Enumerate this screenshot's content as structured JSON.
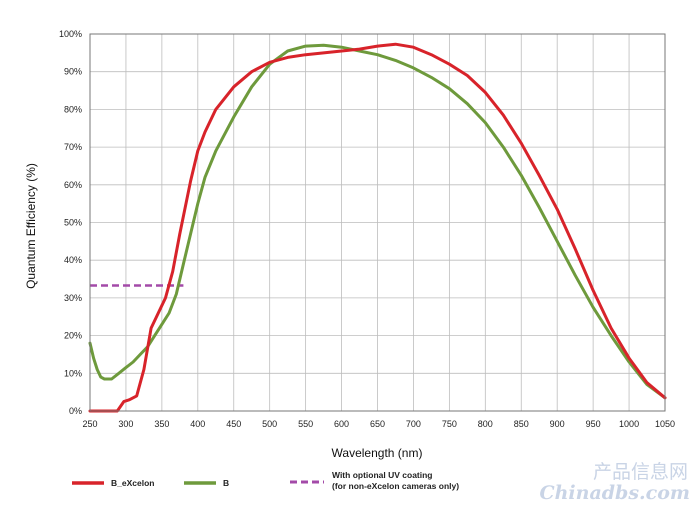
{
  "chart_data": {
    "type": "line",
    "xlabel": "Wavelength (nm)",
    "ylabel": "Quantum Efficiency (%)",
    "xlim": [
      250,
      1050
    ],
    "ylim": [
      0,
      100
    ],
    "x_ticks": [
      "250",
      "300",
      "350",
      "400",
      "450",
      "500",
      "550",
      "600",
      "650",
      "700",
      "750",
      "800",
      "850",
      "900",
      "950",
      "1000",
      "1050"
    ],
    "y_ticks": [
      "0%",
      "10%",
      "20%",
      "30%",
      "40%",
      "50%",
      "60%",
      "70%",
      "80%",
      "90%",
      "100%"
    ],
    "grid": true,
    "legend_position": "bottom",
    "series": [
      {
        "name": "B_eXcelon",
        "color": "#d8232a",
        "style": "solid",
        "points": [
          [
            250,
            0
          ],
          [
            270,
            0
          ],
          [
            288,
            0
          ],
          [
            297,
            2.5
          ],
          [
            305,
            3
          ],
          [
            315,
            4
          ],
          [
            325,
            11
          ],
          [
            335,
            22
          ],
          [
            345,
            26
          ],
          [
            355,
            30
          ],
          [
            365,
            37
          ],
          [
            375,
            47
          ],
          [
            390,
            61
          ],
          [
            400,
            69
          ],
          [
            410,
            74
          ],
          [
            425,
            80
          ],
          [
            450,
            86
          ],
          [
            475,
            90
          ],
          [
            500,
            92.5
          ],
          [
            525,
            93.8
          ],
          [
            550,
            94.5
          ],
          [
            575,
            95
          ],
          [
            600,
            95.5
          ],
          [
            625,
            96
          ],
          [
            650,
            96.8
          ],
          [
            675,
            97.3
          ],
          [
            700,
            96.5
          ],
          [
            725,
            94.5
          ],
          [
            750,
            92
          ],
          [
            775,
            89
          ],
          [
            800,
            84.5
          ],
          [
            825,
            78.5
          ],
          [
            850,
            71
          ],
          [
            875,
            62.5
          ],
          [
            900,
            53.5
          ],
          [
            925,
            43
          ],
          [
            950,
            32
          ],
          [
            975,
            22
          ],
          [
            1000,
            14
          ],
          [
            1025,
            7.5
          ],
          [
            1050,
            3.5
          ]
        ]
      },
      {
        "name": "B",
        "color": "#6e9a3c",
        "style": "solid",
        "points": [
          [
            250,
            18
          ],
          [
            255,
            14
          ],
          [
            260,
            11
          ],
          [
            265,
            9
          ],
          [
            270,
            8.5
          ],
          [
            280,
            8.5
          ],
          [
            290,
            10
          ],
          [
            300,
            11.5
          ],
          [
            310,
            13
          ],
          [
            320,
            15
          ],
          [
            330,
            17
          ],
          [
            340,
            20
          ],
          [
            350,
            23
          ],
          [
            360,
            26
          ],
          [
            370,
            31
          ],
          [
            380,
            39
          ],
          [
            390,
            47
          ],
          [
            400,
            55
          ],
          [
            410,
            62
          ],
          [
            425,
            69
          ],
          [
            450,
            78
          ],
          [
            475,
            86
          ],
          [
            500,
            92
          ],
          [
            525,
            95.5
          ],
          [
            550,
            96.8
          ],
          [
            575,
            97
          ],
          [
            600,
            96.5
          ],
          [
            625,
            95.5
          ],
          [
            650,
            94.5
          ],
          [
            675,
            93
          ],
          [
            700,
            91
          ],
          [
            725,
            88.5
          ],
          [
            750,
            85.5
          ],
          [
            775,
            81.5
          ],
          [
            800,
            76.5
          ],
          [
            825,
            70
          ],
          [
            850,
            62.5
          ],
          [
            875,
            54
          ],
          [
            900,
            45
          ],
          [
            925,
            36
          ],
          [
            950,
            27.5
          ],
          [
            975,
            20
          ],
          [
            1000,
            13
          ],
          [
            1025,
            7
          ],
          [
            1050,
            3.5
          ]
        ]
      },
      {
        "name": "With optional UV coating",
        "name_line2": "(for non-eXcelon cameras only)",
        "color": "#a34aa8",
        "style": "dashed",
        "points": [
          [
            250,
            33.3
          ],
          [
            380,
            33.3
          ]
        ]
      }
    ]
  },
  "watermark": {
    "line1": "产品信息网",
    "line2": "Chinadbs.com"
  }
}
